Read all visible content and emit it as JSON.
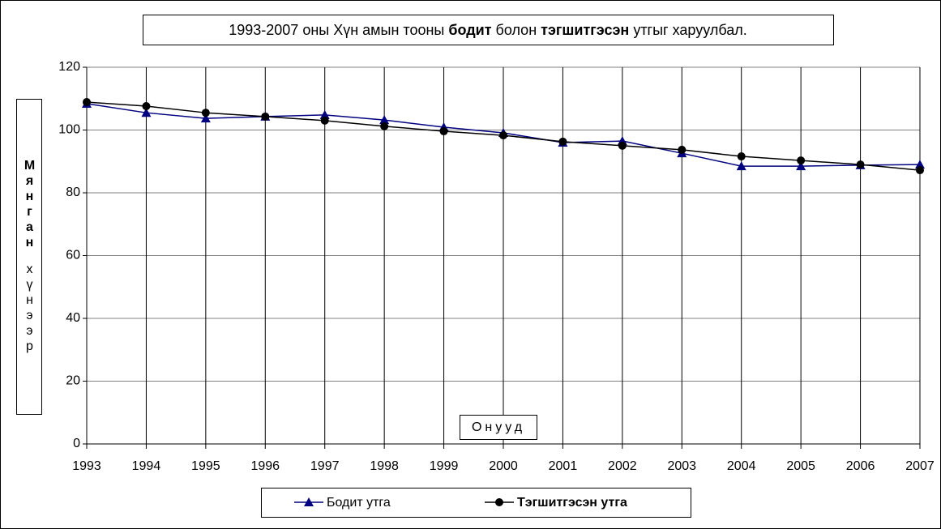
{
  "chart_data": {
    "type": "line",
    "title": [
      "1993-2007 оны Хүн амын тооны ",
      "бодит",
      " болон ",
      "тэгшитгэсэн",
      " утгыг харуулбал."
    ],
    "ylabel": [
      "Мянган",
      "хүнээр"
    ],
    "xlabel": "Онууд",
    "x": [
      1993,
      1994,
      1995,
      1996,
      1997,
      1998,
      1999,
      2000,
      2001,
      2002,
      2003,
      2004,
      2005,
      2006,
      2007
    ],
    "xlim": [
      1993,
      2007
    ],
    "xticks": [
      1993,
      1994,
      1995,
      1996,
      1997,
      1998,
      1999,
      2000,
      2001,
      2002,
      2003,
      2004,
      2005,
      2006,
      2007
    ],
    "ylim": [
      0,
      120
    ],
    "yticks": [
      0,
      20,
      40,
      60,
      80,
      100,
      120
    ],
    "grid": true,
    "legend": "bottom",
    "series": [
      {
        "name": "Бодит утга",
        "color": "#000080",
        "marker": "triangle",
        "values": [
          108.4,
          105.5,
          103.7,
          104.3,
          104.8,
          103.2,
          100.9,
          99.1,
          96.0,
          96.5,
          92.6,
          88.5,
          88.5,
          88.8,
          89.0
        ]
      },
      {
        "name": "Тэгшитгэсэн утга",
        "color": "#000000",
        "marker": "circle",
        "values": [
          108.9,
          107.6,
          105.5,
          104.3,
          103.0,
          101.2,
          99.6,
          98.3,
          96.3,
          95.0,
          93.7,
          91.6,
          90.3,
          89.0,
          87.2
        ]
      }
    ]
  }
}
